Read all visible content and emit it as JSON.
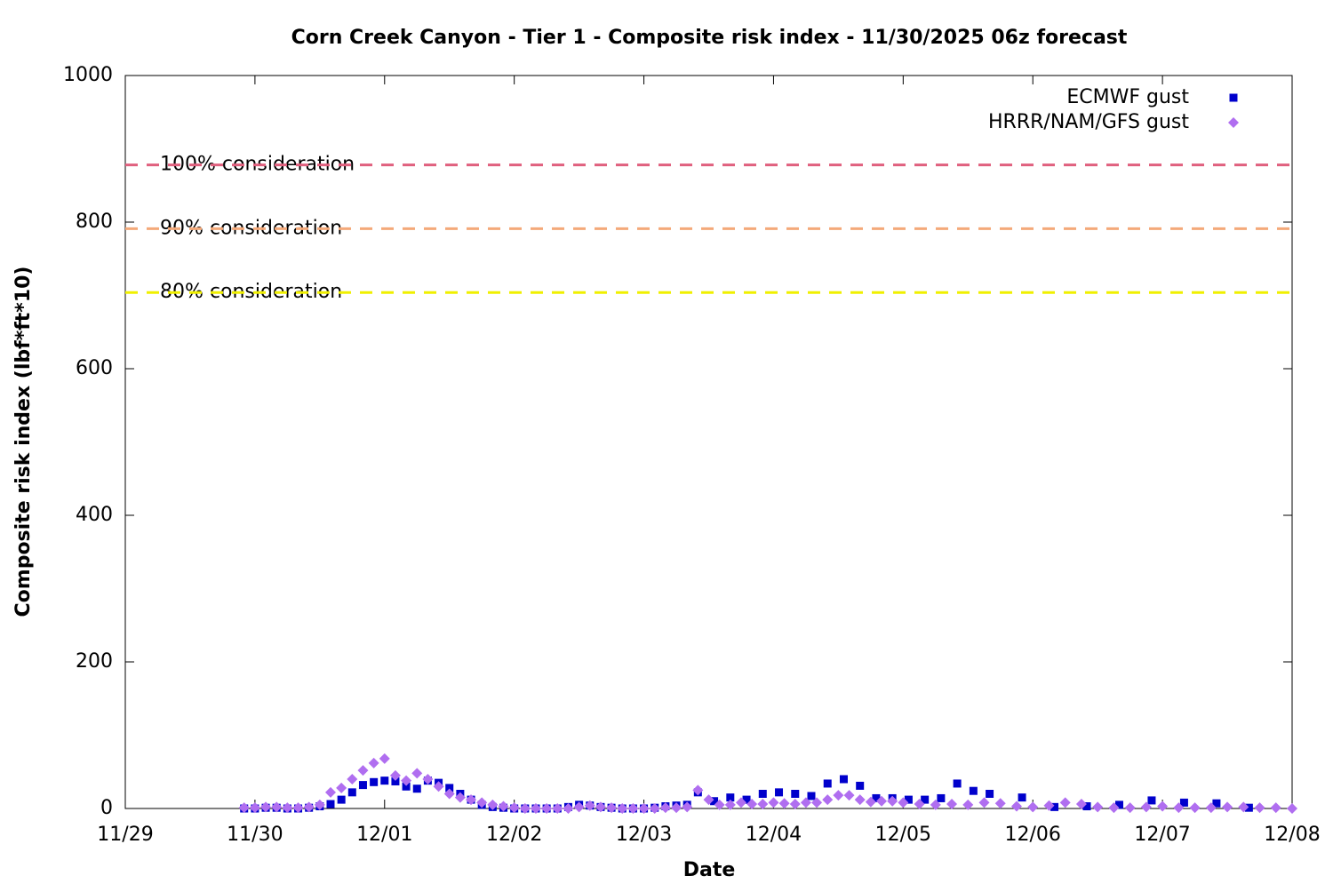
{
  "chart_data": {
    "type": "scatter",
    "title": "Corn Creek Canyon - Tier 1 - Composite risk index - 11/30/2025 06z forecast",
    "x_label": "Date",
    "y_label": "Composite risk index (lbf*ft*10)",
    "xlim": [
      0,
      216
    ],
    "xticks": [
      {
        "value": 0,
        "label": "11/29"
      },
      {
        "value": 24,
        "label": "11/30"
      },
      {
        "value": 48,
        "label": "12/01"
      },
      {
        "value": 72,
        "label": "12/02"
      },
      {
        "value": 96,
        "label": "12/03"
      },
      {
        "value": 120,
        "label": "12/04"
      },
      {
        "value": 144,
        "label": "12/05"
      },
      {
        "value": 168,
        "label": "12/06"
      },
      {
        "value": 192,
        "label": "12/07"
      },
      {
        "value": 216,
        "label": "12/08"
      }
    ],
    "ylim": [
      0,
      1000
    ],
    "yticks": [
      0,
      200,
      400,
      600,
      800,
      1000
    ],
    "legend": "top-right",
    "thresholds": [
      {
        "label": "100% consideration",
        "value": 878,
        "color": "#e0607e"
      },
      {
        "label": "90% consideration",
        "value": 791,
        "color": "#f4a97a"
      },
      {
        "label": "80% consideration",
        "value": 704,
        "color": "#f0f000"
      }
    ],
    "series": [
      {
        "name": "ECMWF gust",
        "color": "#0000cc",
        "marker": "square",
        "x": [
          22,
          24,
          26,
          28,
          30,
          32,
          34,
          36,
          38,
          40,
          42,
          44,
          46,
          48,
          50,
          52,
          54,
          56,
          58,
          60,
          62,
          64,
          66,
          68,
          70,
          72,
          74,
          76,
          78,
          80,
          82,
          84,
          86,
          88,
          90,
          92,
          94,
          96,
          98,
          100,
          102,
          104,
          106,
          109,
          112,
          115,
          118,
          121,
          124,
          127,
          130,
          133,
          136,
          139,
          142,
          145,
          148,
          151,
          154,
          157,
          160,
          166,
          172,
          178,
          184,
          190,
          196,
          202,
          208
        ],
        "values": [
          0,
          0,
          1,
          1,
          0,
          0,
          1,
          3,
          6,
          12,
          22,
          32,
          36,
          38,
          37,
          30,
          27,
          38,
          35,
          28,
          20,
          12,
          5,
          2,
          1,
          0,
          0,
          0,
          0,
          0,
          2,
          5,
          4,
          2,
          1,
          0,
          0,
          0,
          1,
          3,
          4,
          5,
          22,
          10,
          15,
          12,
          20,
          22,
          20,
          17,
          34,
          40,
          31,
          14,
          14,
          12,
          12,
          14,
          34,
          24,
          20,
          15,
          2,
          3,
          5,
          11,
          8,
          7,
          1
        ]
      },
      {
        "name": "HRRR/NAM/GFS gust",
        "color": "#b06ef0",
        "marker": "diamond",
        "x": [
          22,
          24,
          26,
          28,
          30,
          32,
          34,
          36,
          38,
          40,
          42,
          44,
          46,
          48,
          50,
          52,
          54,
          56,
          58,
          60,
          62,
          64,
          66,
          68,
          70,
          72,
          74,
          76,
          78,
          80,
          82,
          84,
          86,
          88,
          90,
          92,
          94,
          96,
          98,
          100,
          102,
          104,
          106,
          108,
          110,
          112,
          114,
          116,
          118,
          120,
          122,
          124,
          126,
          128,
          130,
          132,
          134,
          136,
          138,
          140,
          142,
          144,
          147,
          150,
          153,
          156,
          159,
          162,
          165,
          168,
          171,
          174,
          177,
          180,
          183,
          186,
          189,
          192,
          195,
          198,
          201,
          204,
          207,
          210,
          213,
          216
        ],
        "values": [
          1,
          1,
          2,
          2,
          1,
          1,
          2,
          5,
          22,
          28,
          40,
          52,
          62,
          68,
          45,
          38,
          48,
          40,
          30,
          20,
          15,
          12,
          8,
          5,
          3,
          1,
          0,
          0,
          0,
          0,
          0,
          2,
          4,
          2,
          1,
          0,
          0,
          0,
          0,
          1,
          1,
          2,
          25,
          12,
          5,
          5,
          8,
          6,
          6,
          8,
          7,
          6,
          8,
          8,
          12,
          18,
          18,
          12,
          9,
          10,
          10,
          8,
          6,
          5,
          6,
          5,
          8,
          7,
          3,
          2,
          4,
          8,
          6,
          2,
          1,
          1,
          2,
          3,
          1,
          1,
          1,
          2,
          2,
          1,
          1,
          0
        ]
      }
    ]
  }
}
